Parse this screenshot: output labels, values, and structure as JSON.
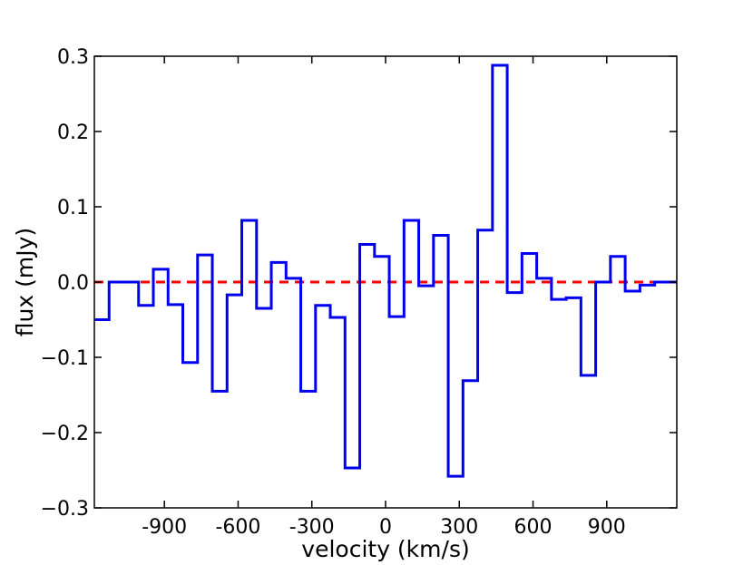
{
  "chart_data": {
    "type": "line",
    "style": "step",
    "xlabel": "velocity (km/s)",
    "ylabel": "flux (mJy)",
    "xlim": [
      -1185,
      1185
    ],
    "ylim": [
      -0.3,
      0.3
    ],
    "grid": false,
    "x_ticks": [
      -900,
      -600,
      -300,
      0,
      300,
      600,
      900
    ],
    "x_tick_labels": [
      "-900",
      "-600",
      "-300",
      "0",
      "300",
      "600",
      "900"
    ],
    "y_ticks": [
      0.3,
      0.2,
      0.1,
      0.0,
      -0.1,
      -0.2,
      -0.3
    ],
    "y_tick_labels": [
      "0.3",
      "0.2",
      "0.1",
      "0.0",
      "−0.1",
      "−0.2",
      "−0.3"
    ],
    "series": [
      {
        "color": "#0000ee",
        "bin_edges": [
          -1185,
          -1125,
          -1065,
          -1005,
          -945,
          -885,
          -825,
          -765,
          -705,
          -645,
          -585,
          -525,
          -465,
          -405,
          -345,
          -285,
          -225,
          -165,
          -105,
          -45,
          15,
          75,
          135,
          195,
          255,
          315,
          375,
          435,
          495,
          555,
          615,
          675,
          735,
          795,
          855,
          915,
          975,
          1035,
          1095,
          1185
        ],
        "values": [
          -0.05,
          0.0,
          0.0,
          -0.031,
          0.017,
          -0.03,
          -0.107,
          0.036,
          -0.145,
          -0.017,
          0.082,
          -0.035,
          0.026,
          0.005,
          -0.145,
          -0.031,
          -0.047,
          -0.247,
          0.05,
          0.034,
          -0.046,
          0.082,
          -0.005,
          0.062,
          -0.258,
          -0.131,
          0.069,
          0.288,
          -0.014,
          0.038,
          0.005,
          -0.023,
          -0.021,
          -0.124,
          0.0,
          0.034,
          -0.012,
          -0.004,
          0.0
        ]
      }
    ],
    "reference_line": {
      "y": 0.0,
      "color": "#ff0000",
      "style": "dashed"
    }
  }
}
